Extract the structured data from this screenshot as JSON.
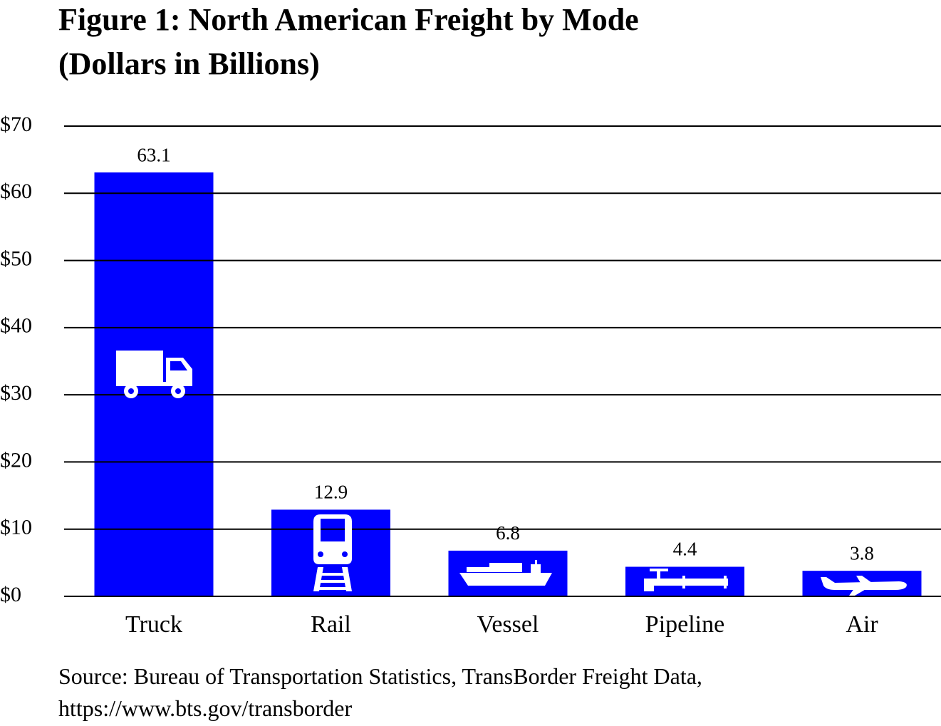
{
  "chart_data": {
    "type": "bar",
    "title": "Figure 1: North American Freight by Mode",
    "subtitle": "(Dollars in Billions)",
    "categories": [
      "Truck",
      "Rail",
      "Vessel",
      "Pipeline",
      "Air"
    ],
    "values": [
      63.1,
      12.9,
      6.8,
      4.4,
      3.8
    ],
    "color": "#0000ff",
    "ylim": [
      0,
      70
    ],
    "yticks": [
      {
        "value": 0,
        "label": "$0"
      },
      {
        "value": 10,
        "label": "$10"
      },
      {
        "value": 20,
        "label": "$20"
      },
      {
        "value": 30,
        "label": "$30"
      },
      {
        "value": 40,
        "label": "$40"
      },
      {
        "value": 50,
        "label": "$50"
      },
      {
        "value": 60,
        "label": "$60"
      },
      {
        "value": 70,
        "label": "$70"
      }
    ],
    "grid": true,
    "source": [
      "Source: Bureau of Transportation Statistics, TransBorder Freight Data,",
      "https://www.bts.gov/transborder"
    ]
  }
}
